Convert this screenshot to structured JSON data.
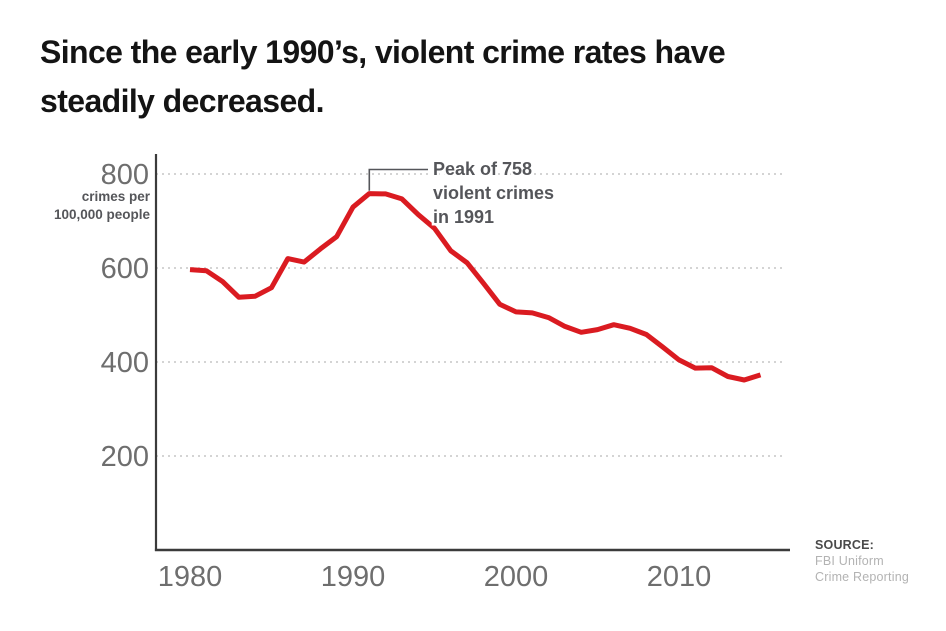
{
  "title": {
    "lines": [
      "Since the early 1990’s, violent crime rates have",
      "steadily decreased."
    ]
  },
  "annotation": {
    "lines": [
      "Peak of 758",
      "violent crimes",
      "in 1991"
    ]
  },
  "source": {
    "label": "SOURCE:",
    "lines": [
      "FBI Uniform",
      "Crime Reporting"
    ]
  },
  "colors": {
    "line": "#da1b21",
    "axis": "#3b3b3b",
    "grid": "#c5c5c5",
    "tick_label": "#6e6e6e",
    "annotation_text": "#55565a",
    "title_text": "#141414",
    "source_muted": "#b3b3b3"
  },
  "chart_data": {
    "type": "line",
    "title": "Since the early 1990’s, violent crime rates have steadily decreased.",
    "xlabel": "",
    "ylabel": "crimes per 100,000 people",
    "ylabel_lines": [
      "crimes per",
      "100,000 people"
    ],
    "legend": "none",
    "grid": "horizontal dashed",
    "x_ticks": [
      1980,
      1990,
      2000,
      2010
    ],
    "y_ticks": [
      800,
      600,
      400,
      200
    ],
    "xlim": [
      1980,
      2015
    ],
    "ylim": [
      0,
      850
    ],
    "line_color": "#da1b21",
    "x": [
      1980,
      1981,
      1982,
      1983,
      1984,
      1985,
      1986,
      1987,
      1988,
      1989,
      1990,
      1991,
      1992,
      1993,
      1994,
      1995,
      1996,
      1997,
      1998,
      1999,
      2000,
      2001,
      2002,
      2003,
      2004,
      2005,
      2006,
      2007,
      2008,
      2009,
      2010,
      2011,
      2012,
      2013,
      2014,
      2015
    ],
    "values": [
      596.6,
      594.3,
      571.1,
      537.7,
      539.9,
      558.1,
      620.1,
      612.5,
      640.6,
      666.9,
      729.6,
      758.2,
      757.7,
      747.1,
      713.6,
      684.5,
      636.6,
      611.0,
      567.6,
      523.0,
      506.5,
      504.5,
      494.4,
      475.8,
      463.2,
      469.0,
      479.3,
      471.8,
      458.6,
      431.9,
      404.5,
      387.1,
      387.8,
      369.1,
      361.6,
      372.6
    ],
    "peak": {
      "year": 1991,
      "value": 758,
      "label": "Peak of 758 violent crimes in 1991"
    }
  }
}
